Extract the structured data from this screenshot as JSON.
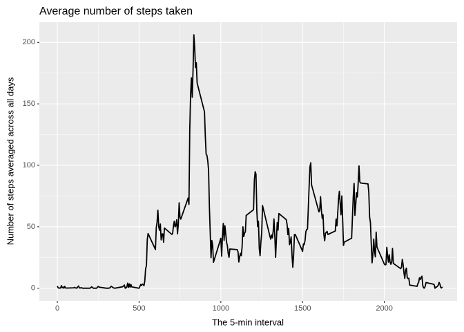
{
  "chart_data": {
    "type": "line",
    "title": "Average number of steps taken",
    "x_label": "The 5-min interval",
    "y_label": "Number of steps averaged across all days",
    "color": "#000000",
    "grid": true,
    "xlim": [
      -110,
      2445
    ],
    "ylim": [
      -10.3,
      216.5
    ],
    "xticks": [
      0,
      500,
      1000,
      1500,
      2000
    ],
    "yticks": [
      0,
      50,
      100,
      150,
      200
    ],
    "x": [
      0,
      5,
      10,
      15,
      20,
      25,
      30,
      35,
      40,
      45,
      50,
      55,
      100,
      105,
      110,
      115,
      120,
      125,
      130,
      135,
      140,
      145,
      150,
      155,
      200,
      210,
      220,
      230,
      240,
      250,
      255,
      300,
      310,
      320,
      330,
      340,
      350,
      400,
      410,
      415,
      420,
      425,
      430,
      435,
      440,
      445,
      450,
      455,
      500,
      505,
      510,
      515,
      520,
      525,
      530,
      535,
      540,
      545,
      550,
      555,
      600,
      605,
      610,
      615,
      620,
      625,
      630,
      635,
      640,
      645,
      650,
      655,
      700,
      705,
      710,
      715,
      720,
      725,
      730,
      735,
      740,
      745,
      750,
      755,
      800,
      805,
      810,
      815,
      820,
      825,
      830,
      835,
      840,
      845,
      850,
      855,
      900,
      905,
      910,
      915,
      920,
      925,
      930,
      935,
      940,
      945,
      950,
      955,
      1000,
      1005,
      1010,
      1015,
      1020,
      1025,
      1030,
      1035,
      1040,
      1045,
      1050,
      1055,
      1100,
      1105,
      1110,
      1115,
      1120,
      1125,
      1130,
      1135,
      1140,
      1145,
      1150,
      1155,
      1200,
      1205,
      1210,
      1215,
      1220,
      1225,
      1230,
      1235,
      1240,
      1245,
      1250,
      1255,
      1300,
      1305,
      1310,
      1315,
      1320,
      1325,
      1330,
      1335,
      1340,
      1345,
      1350,
      1355,
      1400,
      1405,
      1410,
      1415,
      1420,
      1425,
      1430,
      1435,
      1440,
      1445,
      1450,
      1455,
      1500,
      1505,
      1510,
      1515,
      1520,
      1525,
      1530,
      1535,
      1540,
      1545,
      1550,
      1555,
      1600,
      1605,
      1610,
      1615,
      1620,
      1625,
      1630,
      1635,
      1640,
      1645,
      1650,
      1655,
      1700,
      1705,
      1710,
      1715,
      1720,
      1725,
      1730,
      1735,
      1740,
      1745,
      1750,
      1755,
      1800,
      1805,
      1810,
      1815,
      1820,
      1825,
      1830,
      1835,
      1840,
      1845,
      1850,
      1855,
      1900,
      1905,
      1910,
      1915,
      1920,
      1925,
      1930,
      1935,
      1940,
      1945,
      1950,
      1955,
      2000,
      2005,
      2010,
      2015,
      2020,
      2025,
      2030,
      2035,
      2040,
      2045,
      2050,
      2055,
      2100,
      2105,
      2110,
      2115,
      2120,
      2125,
      2130,
      2135,
      2140,
      2145,
      2150,
      2155,
      2200,
      2205,
      2210,
      2215,
      2220,
      2225,
      2230,
      2235,
      2240,
      2245,
      2250,
      2255,
      2300,
      2305,
      2310,
      2315,
      2320,
      2325,
      2330,
      2335,
      2340,
      2345,
      2350,
      2355
    ],
    "values": [
      1.7,
      0.3,
      0.1,
      0.2,
      0.1,
      2.1,
      0.5,
      0.9,
      0,
      1.5,
      0.3,
      0.1,
      0.3,
      0.7,
      0.2,
      0.3,
      0,
      1.1,
      1.8,
      0.2,
      0.2,
      0.4,
      0.3,
      0,
      0,
      1.1,
      0,
      0,
      0,
      1.5,
      0.9,
      0,
      0,
      0.2,
      1.6,
      0.5,
      0,
      1.2,
      2.6,
      0,
      0.3,
      0.9,
      4.1,
      0.7,
      3.5,
      0.8,
      3.1,
      1.1,
      0,
      1.6,
      3,
      2.2,
      3.3,
      3,
      2.1,
      6.1,
      16,
      18.3,
      39.5,
      44.5,
      31.5,
      49.3,
      53.8,
      63.5,
      50,
      47.1,
      52.2,
      39.3,
      44,
      44.2,
      37.4,
      49,
      43.8,
      44.4,
      50.5,
      54.5,
      49.9,
      51,
      55.7,
      44.3,
      52.3,
      69.5,
      57.8,
      56.2,
      73.4,
      68.2,
      129.4,
      157.5,
      171.2,
      155.4,
      177.3,
      206.2,
      195.9,
      179.6,
      183.4,
      167,
      143.5,
      124,
      109.1,
      108.1,
      103.7,
      96,
      66.2,
      45.2,
      24.8,
      38.8,
      35,
      21.1,
      40.6,
      26.1,
      42.4,
      52.7,
      38.9,
      50.8,
      44.3,
      37.4,
      34.7,
      28.3,
      25.1,
      31.9,
      31.4,
      29.7,
      21.3,
      25.5,
      28.4,
      26.5,
      33.4,
      50,
      42,
      44.6,
      46,
      59.2,
      63.9,
      87.7,
      94.8,
      92.8,
      63.4,
      50.2,
      54.5,
      32.4,
      26.5,
      37.7,
      45.1,
      67.3,
      42.3,
      39.9,
      43.3,
      41,
      46.2,
      56.4,
      42.8,
      25.1,
      40,
      53.5,
      47.3,
      60.8,
      55.8,
      52,
      43.6,
      48.7,
      35.5,
      37.5,
      41.8,
      27.5,
      17.1,
      26.1,
      43.6,
      43.8,
      30,
      36.1,
      35.5,
      38.8,
      46,
      47.8,
      48.1,
      65.3,
      82.9,
      98.7,
      102.1,
      84,
      62.1,
      64.1,
      74.5,
      63.2,
      56.9,
      59.8,
      43.9,
      38.6,
      44.7,
      45.5,
      46.2,
      43.7,
      46.6,
      56.3,
      50.7,
      61.2,
      72.7,
      78.9,
      68.9,
      59.7,
      75.1,
      56.5,
      34.8,
      37.5,
      40.7,
      58,
      74.7,
      85.3,
      59.3,
      67.8,
      77.7,
      74.2,
      85.3,
      99.5,
      86.6,
      85.6,
      84.9,
      77.8,
      58,
      53.4,
      36.3,
      20.7,
      27.4,
      40,
      30.2,
      25.5,
      45.7,
      33.5,
      19.6,
      19,
      19.3,
      33.3,
      26.8,
      21.2,
      27.3,
      21.3,
      19.5,
      21.3,
      32.3,
      20.2,
      15.9,
      17.2,
      23.5,
      19.2,
      12.5,
      8,
      14.7,
      16.3,
      8.7,
      7.8,
      8.1,
      2.6,
      1.5,
      3.7,
      4.8,
      8.5,
      7.1,
      8.7,
      9.8,
      2.2,
      0.3,
      0.1,
      1.6,
      4.6,
      3.3,
      2.8,
      0,
      0.8,
      1,
      1.6,
      2.6,
      4.7,
      3.3,
      0.6,
      0.2,
      1.1
    ]
  }
}
